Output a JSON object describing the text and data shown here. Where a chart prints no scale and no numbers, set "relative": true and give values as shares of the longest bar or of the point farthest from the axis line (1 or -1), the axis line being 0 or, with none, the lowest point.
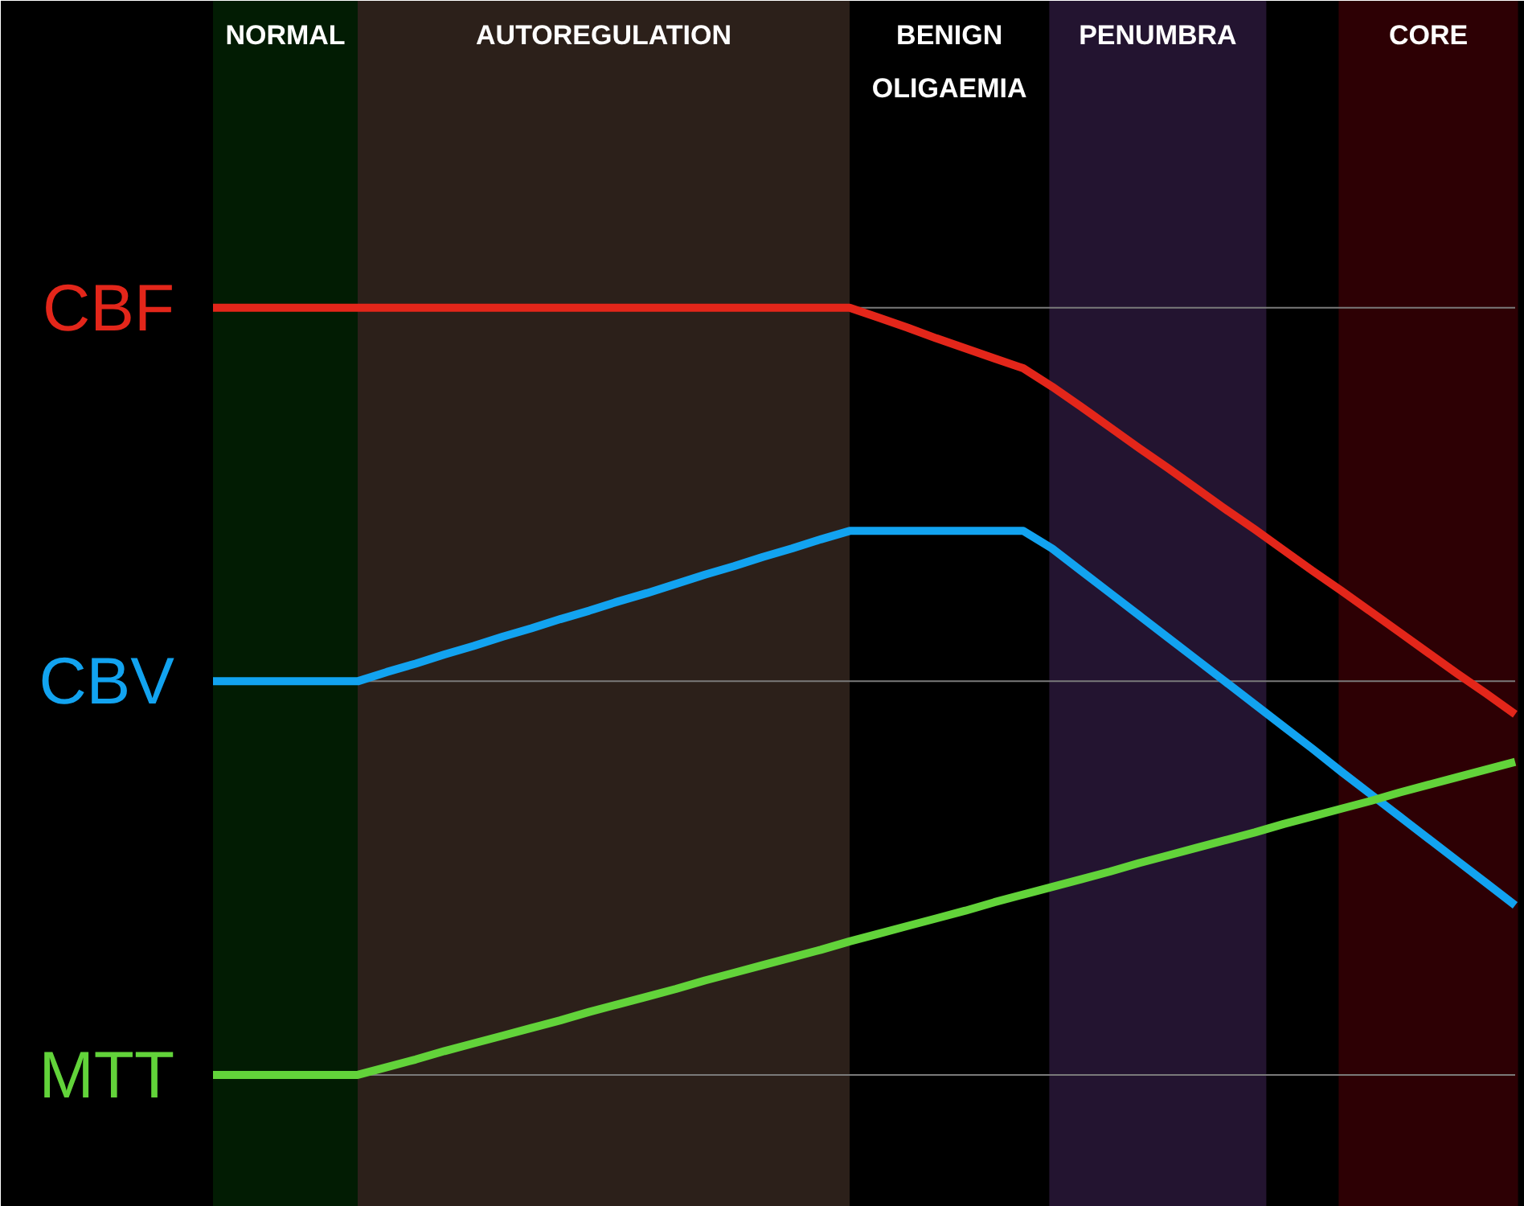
{
  "chart_data": {
    "type": "line",
    "relative": true,
    "categories": [
      null,
      null,
      null,
      null,
      null,
      null,
      null,
      null,
      null,
      null,
      null,
      null,
      null,
      null,
      null,
      null,
      null,
      null,
      null,
      null,
      null,
      null,
      null,
      null,
      null,
      null,
      null,
      null,
      null,
      null,
      null,
      null,
      null,
      null,
      null,
      null,
      null,
      null,
      null,
      null,
      null,
      null,
      null,
      null,
      null,
      null
    ],
    "series": [
      {
        "name": "CBF",
        "color": "#e3261a",
        "values": [
          1,
          1,
          1,
          1,
          1,
          1,
          1,
          1,
          1,
          1,
          1,
          1,
          1,
          1,
          1,
          1,
          1,
          1,
          1,
          1,
          1,
          1,
          1,
          0.987,
          0.974,
          0.96,
          0.947,
          0.934,
          0.921,
          0.897,
          0.871,
          0.844,
          0.817,
          0.791,
          0.764,
          0.737,
          0.711,
          0.684,
          0.657,
          0.631,
          0.604,
          0.577,
          0.55,
          0.523,
          0.497,
          0.47
        ]
      },
      {
        "name": "CBV",
        "color": "#12a3f0",
        "values": [
          0.513,
          0.513,
          0.513,
          0.513,
          0.513,
          0.513,
          0.525,
          0.536,
          0.548,
          0.559,
          0.571,
          0.582,
          0.594,
          0.605,
          0.617,
          0.628,
          0.64,
          0.652,
          0.663,
          0.675,
          0.686,
          0.698,
          0.709,
          0.709,
          0.709,
          0.709,
          0.709,
          0.709,
          0.709,
          0.686,
          0.657,
          0.628,
          0.599,
          0.57,
          0.541,
          0.512,
          0.483,
          0.454,
          0.425,
          0.395,
          0.366,
          0.337,
          0.308,
          0.279,
          0.25,
          0.221
        ]
      },
      {
        "name": "MTT",
        "color": "#62d33a",
        "values": [
          0,
          0,
          0,
          0,
          0,
          0,
          0.01,
          0.02,
          0.031,
          0.041,
          0.051,
          0.061,
          0.071,
          0.082,
          0.092,
          0.102,
          0.112,
          0.123,
          0.133,
          0.143,
          0.153,
          0.163,
          0.174,
          0.184,
          0.194,
          0.204,
          0.214,
          0.225,
          0.235,
          0.245,
          0.255,
          0.265,
          0.276,
          0.286,
          0.296,
          0.306,
          0.316,
          0.327,
          0.337,
          0.347,
          0.357,
          0.368,
          0.378,
          0.388,
          0.398,
          0.408
        ]
      }
    ],
    "annotations": [
      "NORMAL",
      "AUTOREGULATION",
      "BENIGN OLIGAEMIA",
      "PENUMBRA",
      "CORE"
    ],
    "ref_lines": [
      {
        "axis": "y",
        "value": 1,
        "color": "#7a7a7a"
      },
      {
        "axis": "y",
        "value": 0.513,
        "color": "#7a7a7a"
      },
      {
        "axis": "y",
        "value": 0,
        "color": "#7a7a7a"
      }
    ]
  }
}
